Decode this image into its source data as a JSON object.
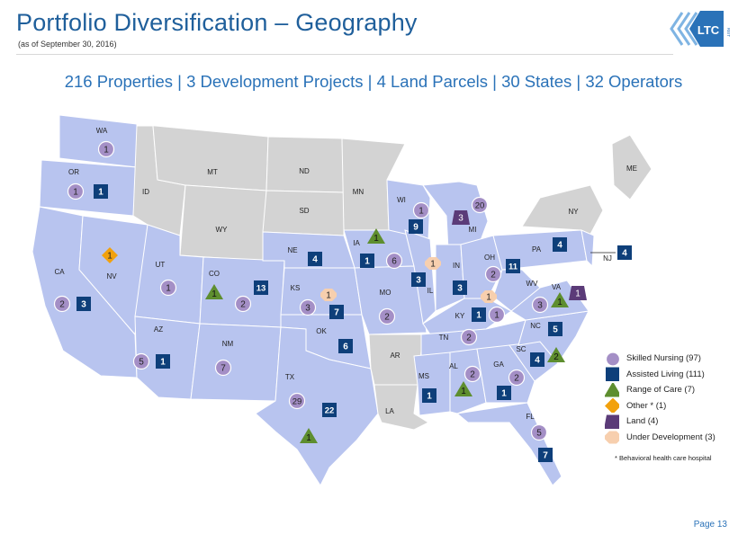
{
  "header": {
    "title": "Portfolio Diversification – Geography",
    "subtitle": "(as of September 30, 2016)"
  },
  "headline": "216 Properties | 3 Development Projects | 4 Land Parcels | 30 States | 32 Operators",
  "logo": {
    "text": "LTC",
    "subtext": "REIT"
  },
  "colors": {
    "active_state": "#b8c4ef",
    "inactive_state": "#d3d3d3",
    "skilled_nursing": "#a48fc6",
    "assisted_living": "#0e3f7a",
    "range_of_care": "#5e8e2f",
    "other": "#f2a10d",
    "land": "#5b3b78",
    "under_development": "#f7cfae",
    "title": "#1f5f9b"
  },
  "states": [
    {
      "label": "WA"
    },
    {
      "label": "OR"
    },
    {
      "label": "CA"
    },
    {
      "label": "NV"
    },
    {
      "label": "ID"
    },
    {
      "label": "MT"
    },
    {
      "label": "WY"
    },
    {
      "label": "UT"
    },
    {
      "label": "AZ"
    },
    {
      "label": "CO"
    },
    {
      "label": "NM"
    },
    {
      "label": "ND"
    },
    {
      "label": "SD"
    },
    {
      "label": "NE"
    },
    {
      "label": "KS"
    },
    {
      "label": "OK"
    },
    {
      "label": "TX"
    },
    {
      "label": "MN"
    },
    {
      "label": "IA"
    },
    {
      "label": "MO"
    },
    {
      "label": "AR"
    },
    {
      "label": "LA"
    },
    {
      "label": "WI"
    },
    {
      "label": "IL"
    },
    {
      "label": "MI"
    },
    {
      "label": "IN"
    },
    {
      "label": "OH"
    },
    {
      "label": "KY"
    },
    {
      "label": "TN"
    },
    {
      "label": "MS"
    },
    {
      "label": "AL"
    },
    {
      "label": "GA"
    },
    {
      "label": "FL"
    },
    {
      "label": "SC"
    },
    {
      "label": "NC"
    },
    {
      "label": "VA"
    },
    {
      "label": "WV"
    },
    {
      "label": "PA"
    },
    {
      "label": "NY"
    },
    {
      "label": "NJ"
    },
    {
      "label": "ME"
    }
  ],
  "markers": [
    {
      "state": "WA",
      "type": "skilled_nursing",
      "count": "1"
    },
    {
      "state": "OR",
      "type": "skilled_nursing",
      "count": "1"
    },
    {
      "state": "OR",
      "type": "assisted_living",
      "count": "1"
    },
    {
      "state": "CA",
      "type": "skilled_nursing",
      "count": "2"
    },
    {
      "state": "CA",
      "type": "assisted_living",
      "count": "3"
    },
    {
      "state": "NV",
      "type": "other",
      "count": "1"
    },
    {
      "state": "UT",
      "type": "skilled_nursing",
      "count": "1"
    },
    {
      "state": "AZ",
      "type": "skilled_nursing",
      "count": "5"
    },
    {
      "state": "AZ",
      "type": "assisted_living",
      "count": "1"
    },
    {
      "state": "CO",
      "type": "range_of_care",
      "count": "1"
    },
    {
      "state": "CO",
      "type": "skilled_nursing",
      "count": "2"
    },
    {
      "state": "CO",
      "type": "assisted_living",
      "count": "13"
    },
    {
      "state": "NM",
      "type": "skilled_nursing",
      "count": "7"
    },
    {
      "state": "NE",
      "type": "assisted_living",
      "count": "4"
    },
    {
      "state": "KS",
      "type": "under_development",
      "count": "1"
    },
    {
      "state": "KS",
      "type": "skilled_nursing",
      "count": "3"
    },
    {
      "state": "KS",
      "type": "assisted_living",
      "count": "7"
    },
    {
      "state": "OK",
      "type": "assisted_living",
      "count": "6"
    },
    {
      "state": "TX",
      "type": "skilled_nursing",
      "count": "29"
    },
    {
      "state": "TX",
      "type": "assisted_living",
      "count": "22"
    },
    {
      "state": "TX",
      "type": "range_of_care",
      "count": "1"
    },
    {
      "state": "IA",
      "type": "range_of_care",
      "count": "1"
    },
    {
      "state": "IA",
      "type": "assisted_living",
      "count": "1"
    },
    {
      "state": "IA",
      "type": "skilled_nursing",
      "count": "6"
    },
    {
      "state": "MO",
      "type": "skilled_nursing",
      "count": "2"
    },
    {
      "state": "WI",
      "type": "skilled_nursing",
      "count": "1"
    },
    {
      "state": "WI",
      "type": "assisted_living",
      "count": "9"
    },
    {
      "state": "IL",
      "type": "under_development",
      "count": "1"
    },
    {
      "state": "IL",
      "type": "assisted_living",
      "count": "3"
    },
    {
      "state": "MI",
      "type": "land",
      "count": "3"
    },
    {
      "state": "MI",
      "type": "skilled_nursing",
      "count": "20"
    },
    {
      "state": "IN",
      "type": "assisted_living",
      "count": "3"
    },
    {
      "state": "OH",
      "type": "skilled_nursing",
      "count": "2"
    },
    {
      "state": "OH",
      "type": "assisted_living",
      "count": "11"
    },
    {
      "state": "KY",
      "type": "under_development",
      "count": "1"
    },
    {
      "state": "KY",
      "type": "assisted_living",
      "count": "1"
    },
    {
      "state": "KY",
      "type": "skilled_nursing",
      "count": "1"
    },
    {
      "state": "TN",
      "type": "skilled_nursing",
      "count": "2"
    },
    {
      "state": "MS",
      "type": "assisted_living",
      "count": "1"
    },
    {
      "state": "AL",
      "type": "skilled_nursing",
      "count": "2"
    },
    {
      "state": "AL",
      "type": "range_of_care",
      "count": "1"
    },
    {
      "state": "GA",
      "type": "skilled_nursing",
      "count": "2"
    },
    {
      "state": "GA",
      "type": "assisted_living",
      "count": "1"
    },
    {
      "state": "FL",
      "type": "skilled_nursing",
      "count": "5"
    },
    {
      "state": "FL",
      "type": "assisted_living",
      "count": "7"
    },
    {
      "state": "SC",
      "type": "assisted_living",
      "count": "4"
    },
    {
      "state": "SC",
      "type": "range_of_care",
      "count": "2"
    },
    {
      "state": "NC",
      "type": "assisted_living",
      "count": "5"
    },
    {
      "state": "VA",
      "type": "skilled_nursing",
      "count": "3"
    },
    {
      "state": "VA",
      "type": "range_of_care",
      "count": "1"
    },
    {
      "state": "VA",
      "type": "land",
      "count": "1"
    },
    {
      "state": "PA",
      "type": "assisted_living",
      "count": "4"
    },
    {
      "state": "NJ",
      "type": "assisted_living",
      "count": "4"
    }
  ],
  "legend": {
    "items": [
      {
        "type": "skilled_nursing",
        "label": "Skilled Nursing (97)",
        "icon": "circle"
      },
      {
        "type": "assisted_living",
        "label": "Assisted Living (111)",
        "icon": "square"
      },
      {
        "type": "range_of_care",
        "label": "Range of Care (7)",
        "icon": "triangle"
      },
      {
        "type": "other",
        "label": "Other * (1)",
        "icon": "diamond"
      },
      {
        "type": "land",
        "label": "Land (4)",
        "icon": "trapezoid"
      },
      {
        "type": "under_development",
        "label": "Under Development (3)",
        "icon": "octagon"
      }
    ],
    "footnote": "* Behavioral health care hospital"
  },
  "footer": {
    "page": "Page 13"
  }
}
